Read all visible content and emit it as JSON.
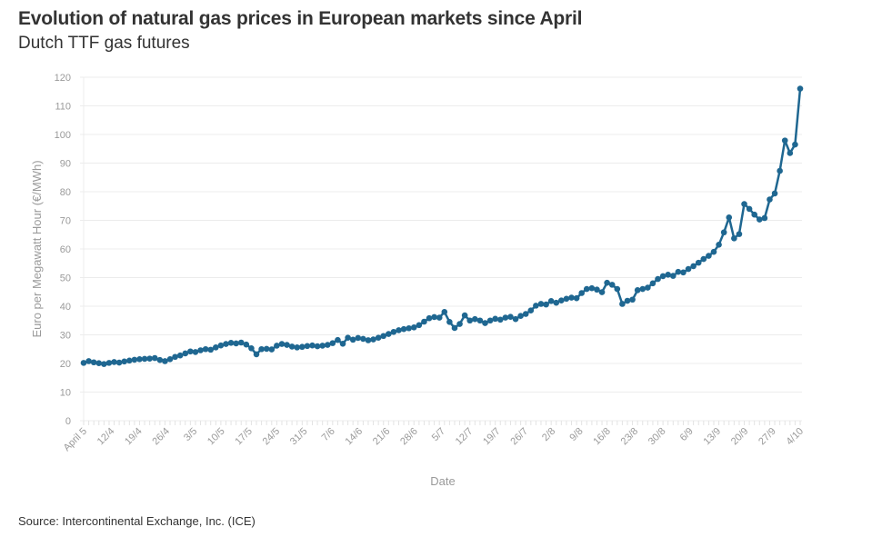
{
  "header": {
    "title": "Evolution of natural gas prices in European markets since April",
    "subtitle": "Dutch TTF gas futures"
  },
  "footer": {
    "source": "Source: Intercontinental Exchange, Inc. (ICE)"
  },
  "colors": {
    "line": "#1f6791",
    "grid": "#ececec",
    "tick_text": "#9a9a9a"
  },
  "chart_data": {
    "type": "line",
    "title": "Evolution of natural gas prices in European markets since April",
    "subtitle": "Dutch TTF gas futures",
    "xlabel": "Date",
    "ylabel": "Euro per Megawatt Hour (€/MWh)",
    "ylim": [
      0,
      120
    ],
    "yticks": [
      0,
      10,
      20,
      30,
      40,
      50,
      60,
      70,
      80,
      90,
      100,
      110,
      120
    ],
    "xtick_labels": [
      "April 5",
      "12/4",
      "19/4",
      "26/4",
      "3/5",
      "10/5",
      "17/5",
      "24/5",
      "31/5",
      "7/6",
      "14/6",
      "21/6",
      "28/6",
      "5/7",
      "12/7",
      "19/7",
      "26/7",
      "2/8",
      "9/8",
      "16/8",
      "23/8",
      "30/8",
      "6/9",
      "13/9",
      "20/9",
      "27/9",
      "4/10"
    ],
    "grid": true,
    "legend": "none",
    "series": [
      {
        "name": "Dutch TTF gas futures",
        "values": [
          20.2,
          20.8,
          20.4,
          20.1,
          19.8,
          20.2,
          20.5,
          20.3,
          20.7,
          21.0,
          21.3,
          21.5,
          21.6,
          21.7,
          21.9,
          21.2,
          20.8,
          21.5,
          22.3,
          22.8,
          23.5,
          24.2,
          24.0,
          24.6,
          25.0,
          24.8,
          25.6,
          26.3,
          26.8,
          27.2,
          27.0,
          27.3,
          26.6,
          25.3,
          23.2,
          25.0,
          25.1,
          24.9,
          26.2,
          26.8,
          26.5,
          25.9,
          25.6,
          25.8,
          26.1,
          26.3,
          26.0,
          26.2,
          26.5,
          27.1,
          28.2,
          26.9,
          29.0,
          28.3,
          28.9,
          28.6,
          28.1,
          28.4,
          29.0,
          29.6,
          30.3,
          31.0,
          31.6,
          32.0,
          32.3,
          32.6,
          33.4,
          34.6,
          35.8,
          36.2,
          36.0,
          38.0,
          34.5,
          32.4,
          33.8,
          36.8,
          35.0,
          35.5,
          35.0,
          34.1,
          35.0,
          35.6,
          35.3,
          36.0,
          36.3,
          35.5,
          36.6,
          37.3,
          38.5,
          40.2,
          40.8,
          40.6,
          41.8,
          41.2,
          42.0,
          42.6,
          43.0,
          42.8,
          44.6,
          46.0,
          46.3,
          45.8,
          44.9,
          48.2,
          47.5,
          46.0,
          40.8,
          41.9,
          42.3,
          45.6,
          46.0,
          46.5,
          48.0,
          49.5,
          50.5,
          51.0,
          50.6,
          52.0,
          51.8,
          53.0,
          54.0,
          55.2,
          56.5,
          57.6,
          59.0,
          61.5,
          65.8,
          71.0,
          63.7,
          65.2,
          75.7,
          74.0,
          72.0,
          70.3,
          70.8,
          77.3,
          79.4,
          87.3,
          97.9,
          93.5,
          96.5,
          116.0
        ]
      }
    ]
  }
}
